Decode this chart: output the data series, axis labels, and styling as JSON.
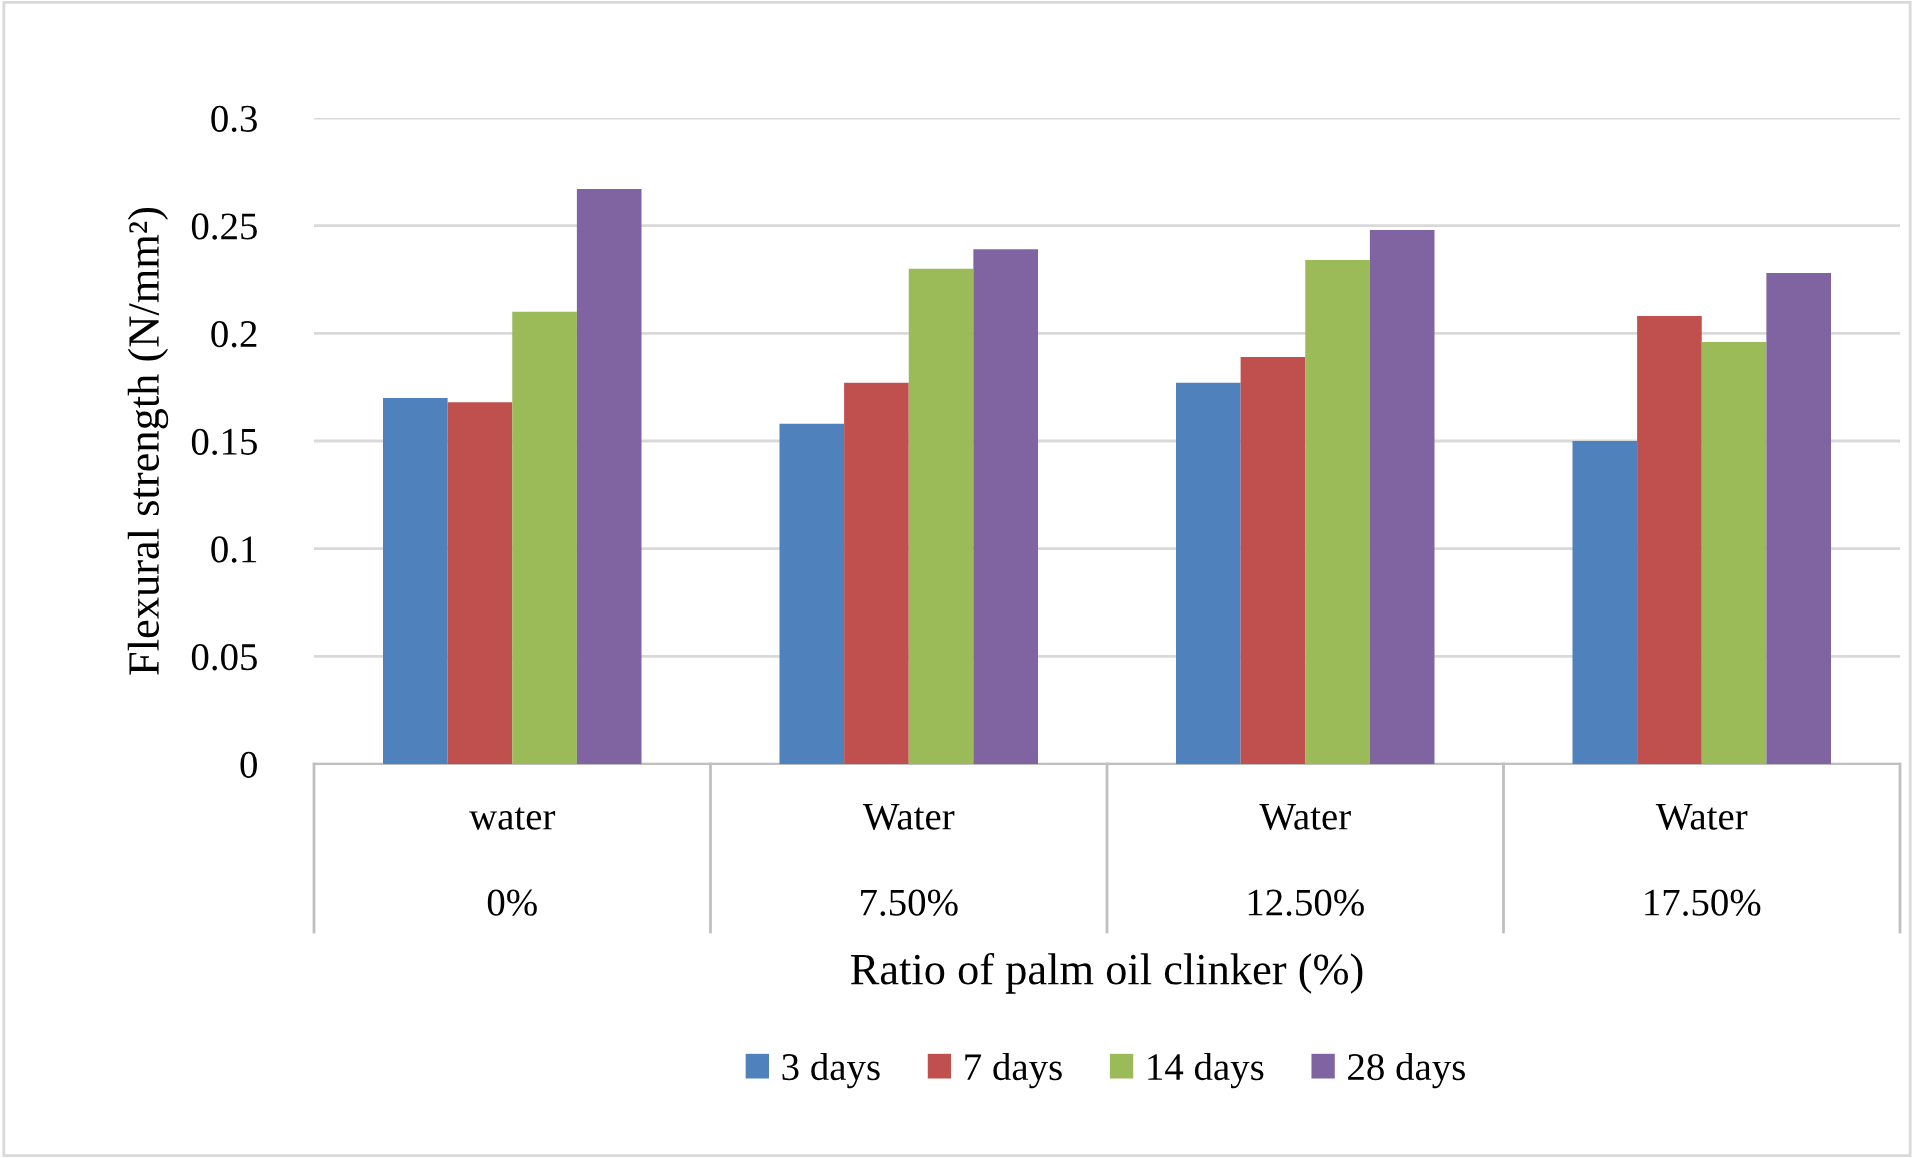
{
  "chart_data": {
    "type": "bar",
    "xlabel": "Ratio of palm oil clinker (%)",
    "ylabel": "Flexural strength (N/mm²)",
    "categories": [
      "water\n0%",
      "Water\n7.50%",
      "Water\n12.50%",
      "Water\n17.50%"
    ],
    "series": [
      {
        "name": "3 days",
        "color": "#4f81bd",
        "values": [
          0.17,
          0.158,
          0.177,
          0.15
        ]
      },
      {
        "name": "7 days",
        "color": "#c0504d",
        "values": [
          0.168,
          0.177,
          0.189,
          0.208
        ]
      },
      {
        "name": "14 days",
        "color": "#9bbb59",
        "values": [
          0.21,
          0.23,
          0.234,
          0.196
        ]
      },
      {
        "name": "28 days",
        "color": "#8064a2",
        "values": [
          0.267,
          0.239,
          0.248,
          0.228
        ]
      }
    ],
    "ylim": [
      0,
      0.3
    ],
    "yticks": [
      {
        "value": 0,
        "label": "0"
      },
      0.05,
      0.1,
      0.15,
      0.2,
      0.25,
      0.3
    ],
    "grid": "y",
    "legend": "bottom"
  }
}
